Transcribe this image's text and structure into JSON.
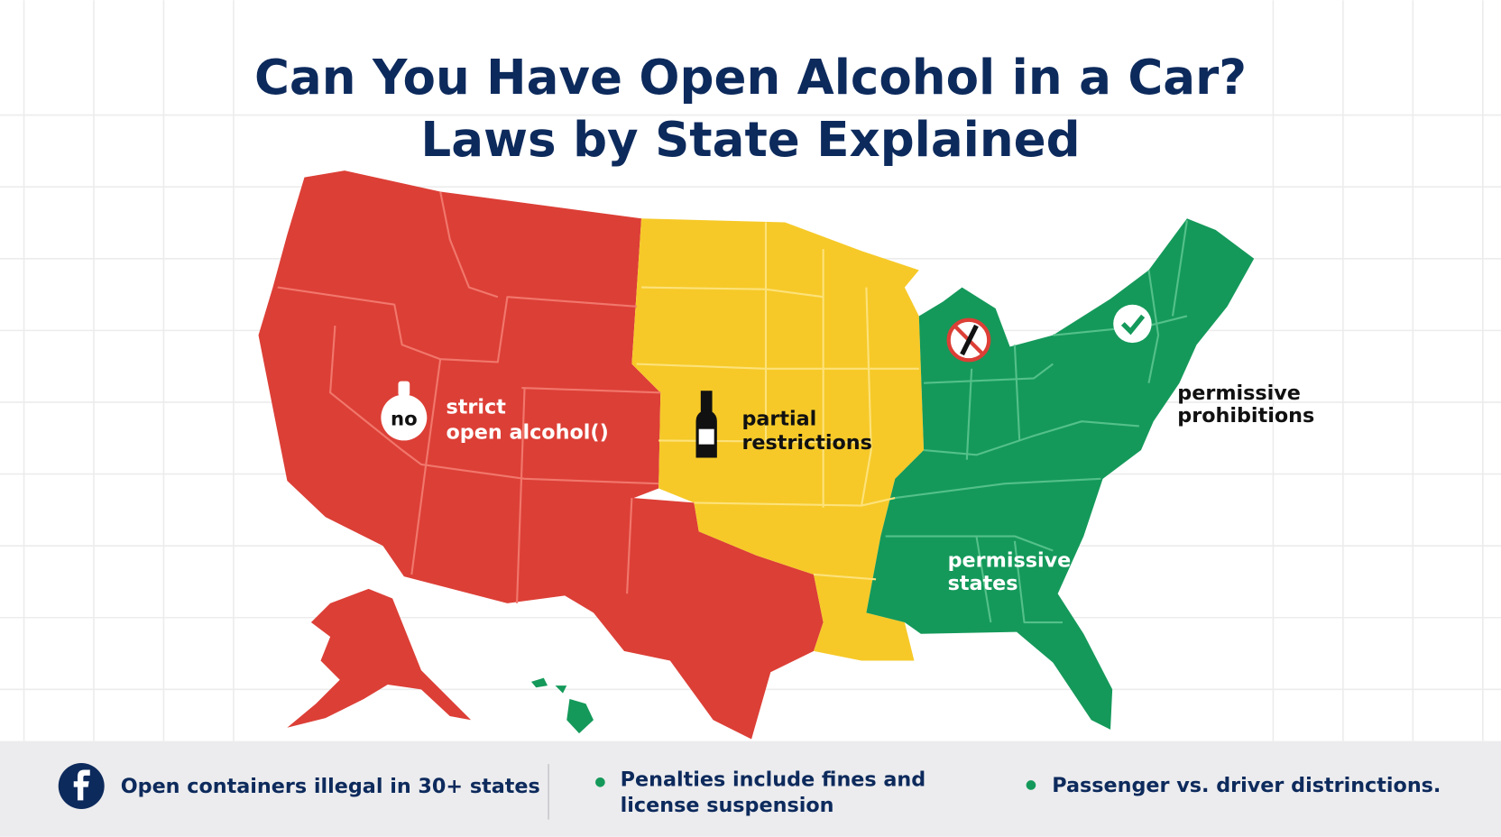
{
  "header": {
    "title": [
      "Can You Have Open Alcohol in a Car?",
      "Laws by State Explained"
    ]
  },
  "map": {
    "icon_label": "no",
    "strict": [
      "strict",
      "open alcohol()"
    ],
    "partial": [
      "partial",
      "restrictions"
    ],
    "permissive_states": [
      "permissive",
      "states"
    ],
    "permissive_note": [
      "permissive",
      "prohibitions"
    ]
  },
  "footer": {
    "items": [
      [
        "Open containers illegal in 30+ states"
      ],
      [
        "Penalties include fines and",
        "license suspension"
      ],
      [
        "Passenger vs. driver distrinctions."
      ]
    ]
  }
}
